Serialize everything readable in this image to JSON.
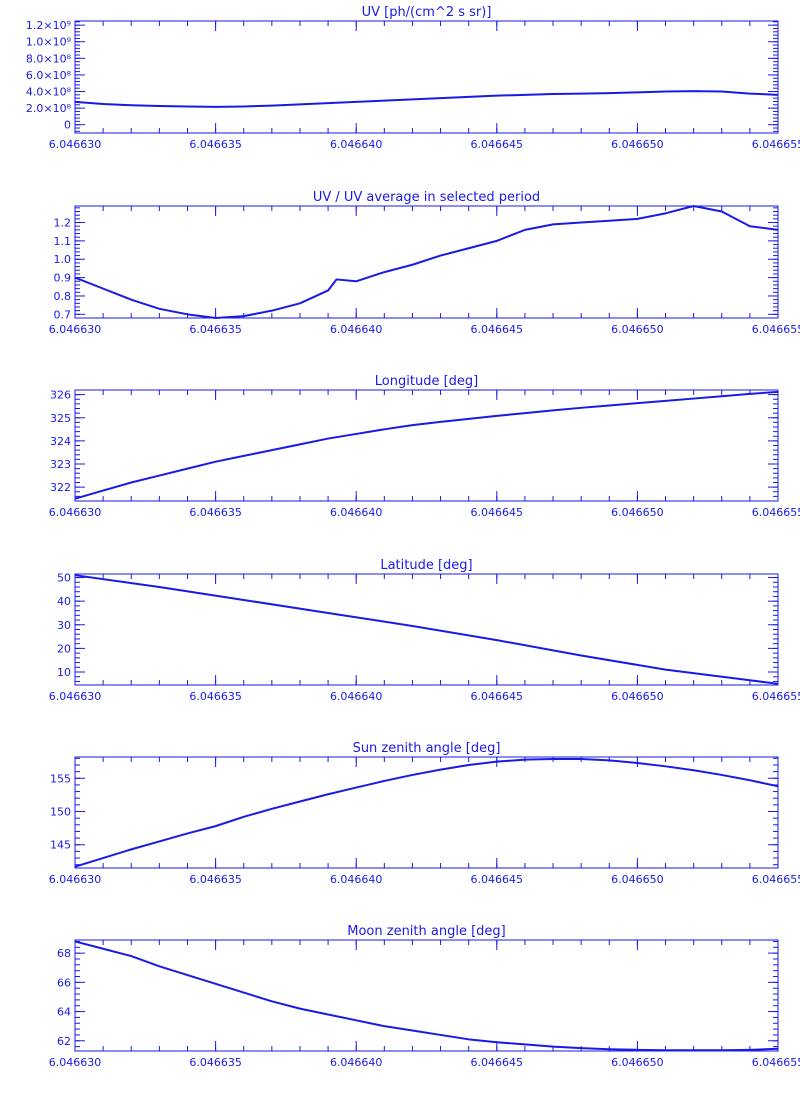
{
  "figure": {
    "line_color": "#1a1ae6",
    "background": "#ffffff"
  },
  "chart_data": [
    {
      "type": "line",
      "title": "UV [ph/(cm^2 s sr)]",
      "xlabel": "",
      "ylabel": "",
      "xlim": [
        6.04663,
        6.046655
      ],
      "ylim": [
        -100000000.0,
        1250000000.0
      ],
      "x_ticks": [
        6.04663,
        6.046635,
        6.04664,
        6.046645,
        6.04665,
        6.046655
      ],
      "x_tick_labels": [
        "6.046630",
        "6.046635",
        "6.046640",
        "6.046645",
        "6.046650",
        "6.046655"
      ],
      "y_ticks": [
        0,
        200000000.0,
        400000000.0,
        600000000.0,
        800000000.0,
        1000000000.0,
        1200000000.0
      ],
      "y_tick_labels": [
        "0",
        "2.0×10⁸",
        "4.0×10⁸",
        "6.0×10⁸",
        "8.0×10⁸",
        "1.0×10⁹",
        "1.2×10⁹"
      ],
      "grid": false,
      "x": [
        6.04663,
        6.046631,
        6.046632,
        6.046633,
        6.046634,
        6.046635,
        6.046636,
        6.046637,
        6.046638,
        6.046639,
        6.04664,
        6.046641,
        6.046642,
        6.046643,
        6.046644,
        6.046645,
        6.046646,
        6.046647,
        6.046648,
        6.046649,
        6.04665,
        6.046651,
        6.046652,
        6.046653,
        6.046654,
        6.046655
      ],
      "y": [
        275000000.0,
        250000000.0,
        235000000.0,
        225000000.0,
        220000000.0,
        215000000.0,
        220000000.0,
        230000000.0,
        245000000.0,
        260000000.0,
        275000000.0,
        290000000.0,
        305000000.0,
        320000000.0,
        335000000.0,
        350000000.0,
        360000000.0,
        370000000.0,
        375000000.0,
        380000000.0,
        390000000.0,
        400000000.0,
        405000000.0,
        400000000.0,
        375000000.0,
        360000000.0
      ]
    },
    {
      "type": "line",
      "title": "UV / UV average in selected period",
      "xlabel": "",
      "ylabel": "",
      "xlim": [
        6.04663,
        6.046655
      ],
      "ylim": [
        0.68,
        1.29
      ],
      "x_ticks": [
        6.04663,
        6.046635,
        6.04664,
        6.046645,
        6.04665,
        6.046655
      ],
      "x_tick_labels": [
        "6.046630",
        "6.046635",
        "6.046640",
        "6.046645",
        "6.046650",
        "6.046655"
      ],
      "y_ticks": [
        0.7,
        0.8,
        0.9,
        1.0,
        1.1,
        1.2
      ],
      "y_tick_labels": [
        "0.7",
        "0.8",
        "0.9",
        "1.0",
        "1.1",
        "1.2"
      ],
      "grid": false,
      "x": [
        6.04663,
        6.046631,
        6.046632,
        6.046633,
        6.046634,
        6.046635,
        6.046636,
        6.046637,
        6.046638,
        6.046639,
        6.0466393,
        6.04664,
        6.046641,
        6.046642,
        6.046643,
        6.046644,
        6.046645,
        6.046646,
        6.046647,
        6.046648,
        6.046649,
        6.04665,
        6.046651,
        6.046652,
        6.046653,
        6.046654,
        6.046655
      ],
      "y": [
        0.9,
        0.84,
        0.78,
        0.73,
        0.7,
        0.68,
        0.69,
        0.72,
        0.76,
        0.83,
        0.89,
        0.88,
        0.93,
        0.97,
        1.02,
        1.06,
        1.1,
        1.16,
        1.19,
        1.2,
        1.21,
        1.22,
        1.25,
        1.29,
        1.26,
        1.18,
        1.16
      ]
    },
    {
      "type": "line",
      "title": "Longitude [deg]",
      "xlabel": "",
      "ylabel": "",
      "xlim": [
        6.04663,
        6.046655
      ],
      "ylim": [
        321.4,
        326.2
      ],
      "x_ticks": [
        6.04663,
        6.046635,
        6.04664,
        6.046645,
        6.04665,
        6.046655
      ],
      "x_tick_labels": [
        "6.046630",
        "6.046635",
        "6.046640",
        "6.046645",
        "6.046650",
        "6.046655"
      ],
      "y_ticks": [
        322,
        323,
        324,
        325,
        326
      ],
      "y_tick_labels": [
        "322",
        "323",
        "324",
        "325",
        "326"
      ],
      "grid": false,
      "x": [
        6.04663,
        6.046631,
        6.046632,
        6.046633,
        6.046634,
        6.046635,
        6.046636,
        6.046637,
        6.046638,
        6.046639,
        6.04664,
        6.046641,
        6.046642,
        6.046643,
        6.046644,
        6.046645,
        6.046646,
        6.046647,
        6.046648,
        6.046649,
        6.04665,
        6.046651,
        6.046652,
        6.046653,
        6.046654,
        6.046655
      ],
      "y": [
        321.5,
        321.85,
        322.2,
        322.5,
        322.8,
        323.1,
        323.35,
        323.6,
        323.85,
        324.1,
        324.3,
        324.5,
        324.68,
        324.82,
        324.95,
        325.08,
        325.2,
        325.32,
        325.43,
        325.53,
        325.63,
        325.73,
        325.83,
        325.93,
        326.03,
        326.12
      ]
    },
    {
      "type": "line",
      "title": "Latitude [deg]",
      "xlabel": "",
      "ylabel": "",
      "xlim": [
        6.04663,
        6.046655
      ],
      "ylim": [
        4.5,
        51.5
      ],
      "x_ticks": [
        6.04663,
        6.046635,
        6.04664,
        6.046645,
        6.04665,
        6.046655
      ],
      "x_tick_labels": [
        "6.046630",
        "6.046635",
        "6.046640",
        "6.046645",
        "6.046650",
        "6.046655"
      ],
      "y_ticks": [
        10,
        20,
        30,
        40,
        50
      ],
      "y_tick_labels": [
        "10",
        "20",
        "30",
        "40",
        "50"
      ],
      "grid": false,
      "x": [
        6.04663,
        6.046633,
        6.046636,
        6.046639,
        6.046642,
        6.046645,
        6.046648,
        6.046651,
        6.046654,
        6.046655
      ],
      "y": [
        51,
        46,
        40.5,
        35,
        29.5,
        23.5,
        17,
        11,
        6.5,
        5
      ]
    },
    {
      "type": "line",
      "title": "Sun zenith angle [deg]",
      "xlabel": "",
      "ylabel": "",
      "xlim": [
        6.04663,
        6.046655
      ],
      "ylim": [
        141.5,
        158.2
      ],
      "x_ticks": [
        6.04663,
        6.046635,
        6.04664,
        6.046645,
        6.04665,
        6.046655
      ],
      "x_tick_labels": [
        "6.046630",
        "6.046635",
        "6.046640",
        "6.046645",
        "6.046650",
        "6.046655"
      ],
      "y_ticks": [
        145,
        150,
        155
      ],
      "y_tick_labels": [
        "145",
        "150",
        "155"
      ],
      "grid": false,
      "x": [
        6.04663,
        6.046631,
        6.046632,
        6.046633,
        6.046634,
        6.046635,
        6.046636,
        6.046637,
        6.046638,
        6.046639,
        6.04664,
        6.046641,
        6.046642,
        6.046643,
        6.046644,
        6.046645,
        6.046646,
        6.046647,
        6.046648,
        6.046649,
        6.04665,
        6.046651,
        6.046652,
        6.046653,
        6.046654,
        6.046655
      ],
      "y": [
        141.7,
        143.0,
        144.3,
        145.5,
        146.7,
        147.8,
        149.2,
        150.4,
        151.5,
        152.6,
        153.6,
        154.6,
        155.5,
        156.3,
        157.0,
        157.5,
        157.8,
        157.9,
        157.9,
        157.7,
        157.3,
        156.8,
        156.2,
        155.5,
        154.7,
        153.8
      ]
    },
    {
      "type": "line",
      "title": "Moon zenith angle [deg]",
      "xlabel": "",
      "ylabel": "",
      "xlim": [
        6.04663,
        6.046655
      ],
      "ylim": [
        61.3,
        68.9
      ],
      "x_ticks": [
        6.04663,
        6.046635,
        6.04664,
        6.046645,
        6.04665,
        6.046655
      ],
      "x_tick_labels": [
        "6.046630",
        "6.046635",
        "6.046640",
        "6.046645",
        "6.046650",
        "6.046655"
      ],
      "y_ticks": [
        62,
        64,
        66,
        68
      ],
      "y_tick_labels": [
        "62",
        "64",
        "66",
        "68"
      ],
      "grid": false,
      "x": [
        6.04663,
        6.046631,
        6.046632,
        6.046633,
        6.046634,
        6.046635,
        6.046636,
        6.046637,
        6.046638,
        6.046639,
        6.04664,
        6.046641,
        6.046642,
        6.046643,
        6.046644,
        6.046645,
        6.046646,
        6.046647,
        6.046648,
        6.046649,
        6.04665,
        6.046651,
        6.046652,
        6.046653,
        6.046654,
        6.046655
      ],
      "y": [
        68.8,
        68.3,
        67.8,
        67.1,
        66.5,
        65.9,
        65.3,
        64.7,
        64.2,
        63.8,
        63.4,
        63.0,
        62.7,
        62.4,
        62.1,
        61.9,
        61.75,
        61.6,
        61.5,
        61.42,
        61.38,
        61.35,
        61.35,
        61.35,
        61.38,
        61.45
      ]
    }
  ]
}
